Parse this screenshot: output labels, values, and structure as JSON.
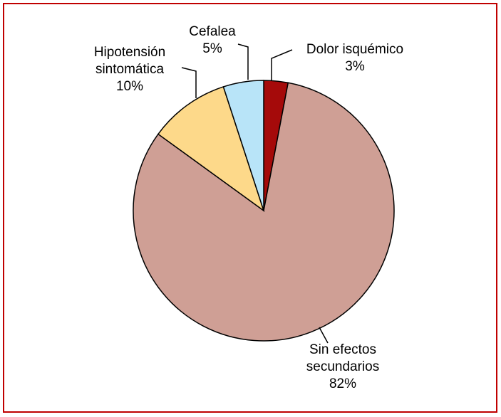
{
  "chart_data": {
    "type": "pie",
    "categories": [
      "Dolor isquémico",
      "Sin efectos secundarios",
      "Hipotensión sintomática",
      "Cefalea"
    ],
    "values": [
      3,
      82,
      10,
      5
    ],
    "value_labels": [
      "3%",
      "82%",
      "10%",
      "5%"
    ],
    "colors": [
      "#a50a0a",
      "#cf9f95",
      "#fdd98a",
      "#b8e4f8"
    ]
  }
}
